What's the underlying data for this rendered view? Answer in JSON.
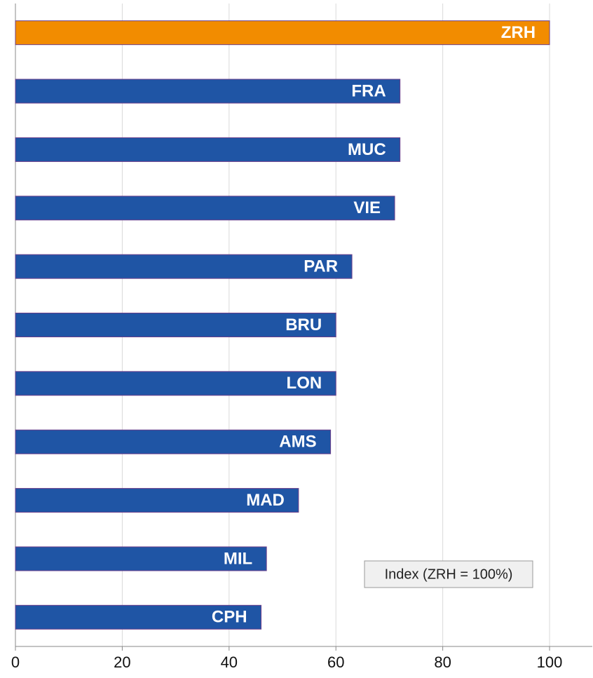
{
  "chart_data": {
    "type": "bar",
    "orientation": "horizontal",
    "categories": [
      "ZRH",
      "FRA",
      "MUC",
      "VIE",
      "PAR",
      "BRU",
      "LON",
      "AMS",
      "MAD",
      "MIL",
      "CPH"
    ],
    "values": [
      100,
      72,
      72,
      71,
      63,
      60,
      60,
      59,
      53,
      47,
      46
    ],
    "colors": [
      "#f28c00",
      "#1f55a5",
      "#1f55a5",
      "#1f55a5",
      "#1f55a5",
      "#1f55a5",
      "#1f55a5",
      "#1f55a5",
      "#1f55a5",
      "#1f55a5",
      "#1f55a5"
    ],
    "xlim": [
      0,
      108
    ],
    "xticks": [
      0,
      20,
      40,
      60,
      80,
      100
    ],
    "grid": true,
    "annotation": "Index (ZRH  = 100%)"
  }
}
